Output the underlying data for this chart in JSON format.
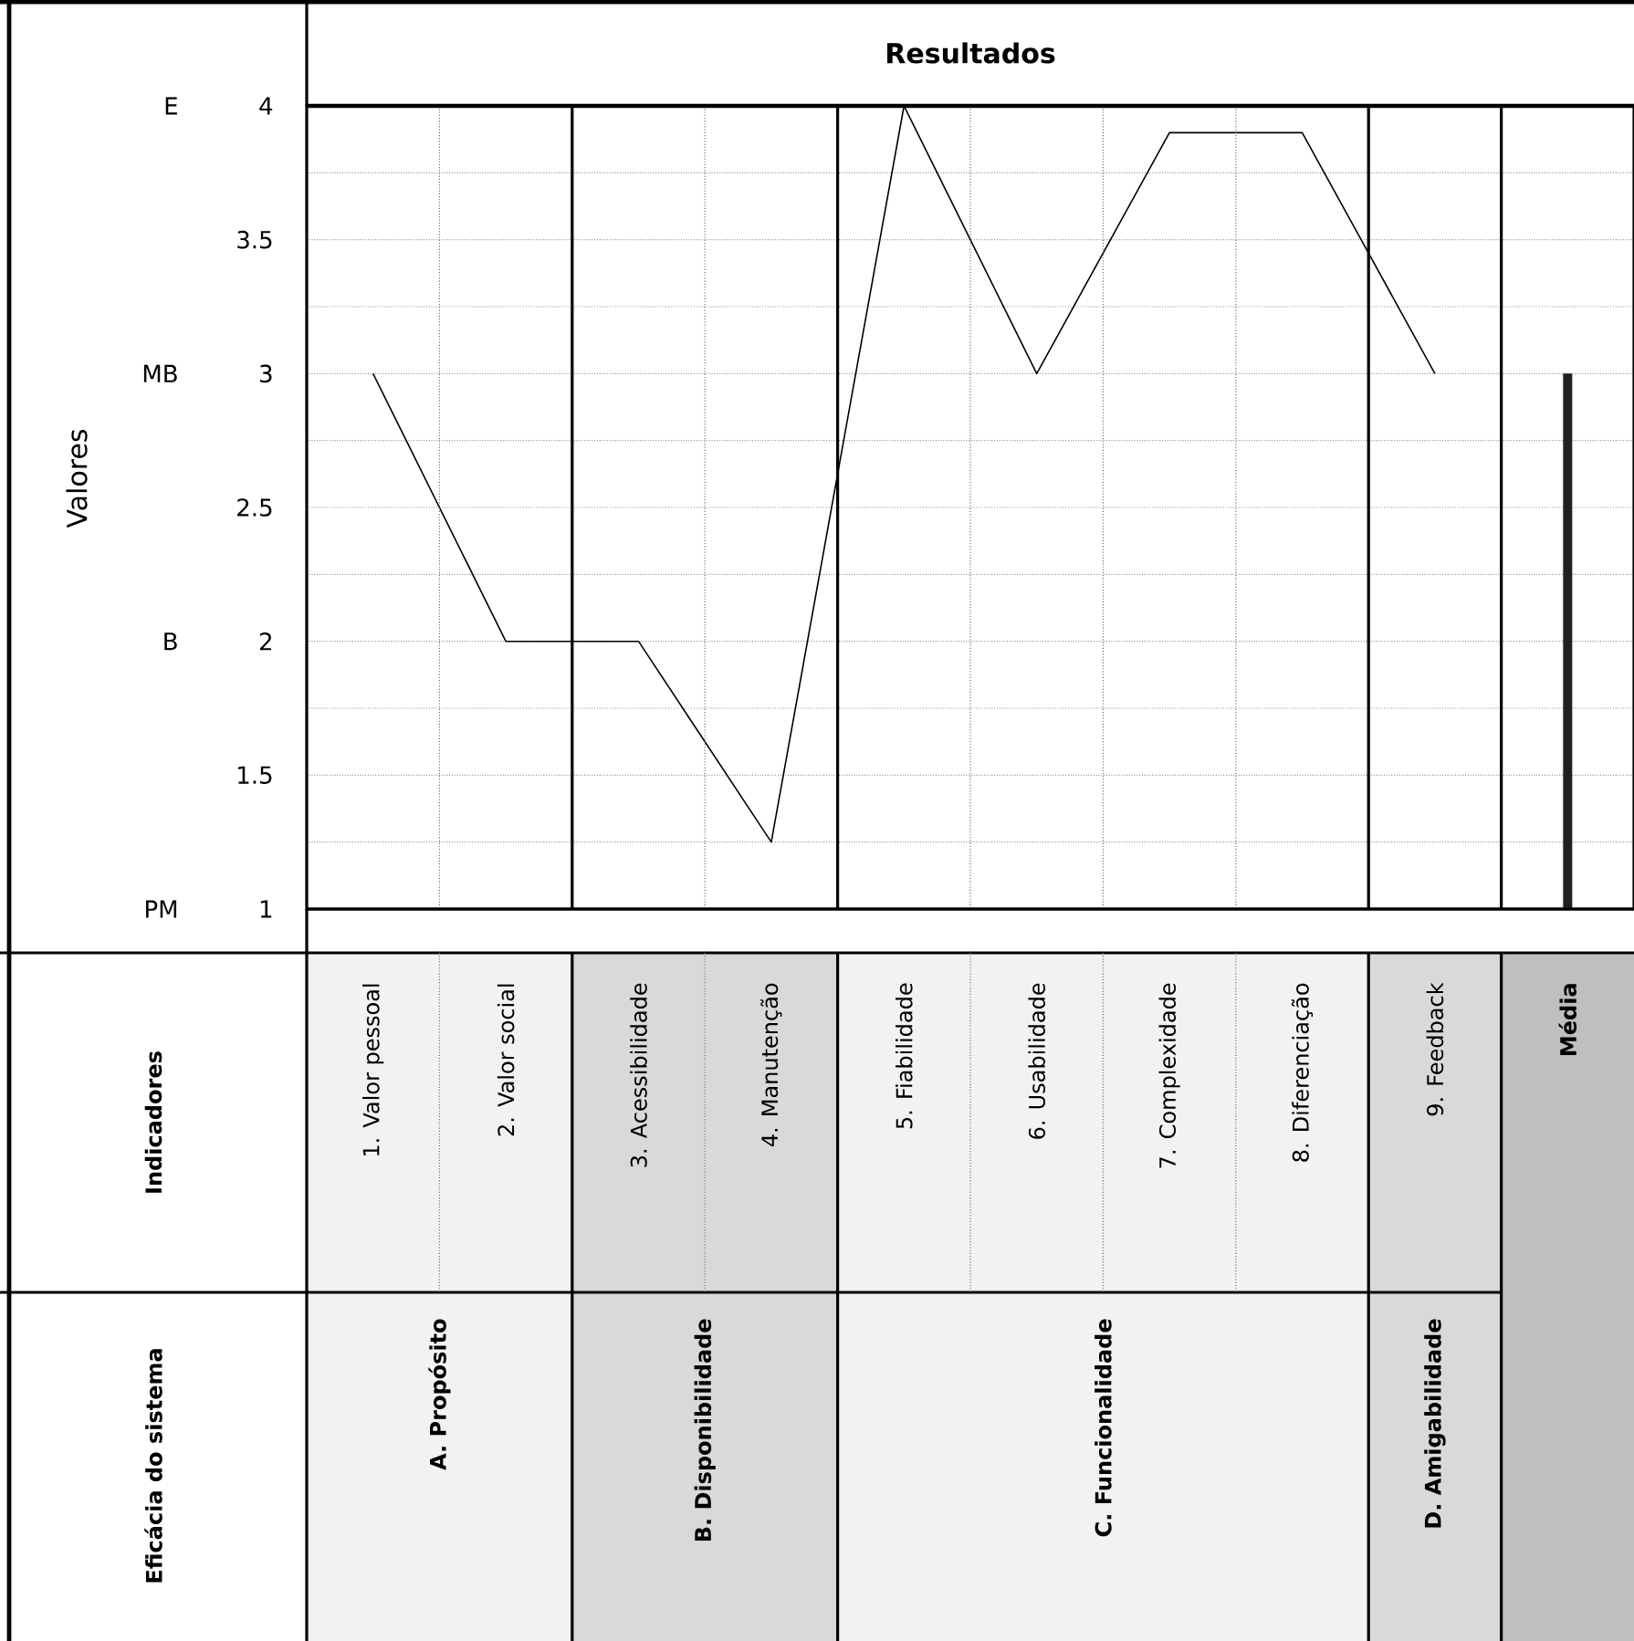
{
  "chart_data": {
    "type": "line",
    "title": "Resultados",
    "categories": [
      "1. Valor pessoal",
      "2. Valor social",
      "3. Acessibilidade",
      "4. Manutenção",
      "5. Fiabilidade",
      "6. Usabilidade",
      "7.  Complexidade",
      "8. Diferenciação",
      "9. Feedback",
      "Média"
    ],
    "series": [
      {
        "color": "#000000",
        "values": [
          3,
          2,
          2,
          1.25,
          4,
          3,
          3.9,
          3.9,
          3,
          null
        ]
      },
      {
        "type": "bar",
        "color": "#231f20",
        "values": [
          null,
          null,
          null,
          null,
          null,
          null,
          null,
          null,
          null,
          3
        ]
      }
    ],
    "ylim": [
      1,
      4
    ],
    "yticks": [
      1,
      {
        "value": 1.25,
        "label": null
      },
      1.5,
      {
        "value": 1.75,
        "label": null
      },
      2,
      {
        "value": 2.25,
        "label": null
      },
      2.5,
      {
        "value": 2.75,
        "label": null
      },
      3,
      {
        "value": 3.25,
        "label": null
      },
      3.5,
      {
        "value": 3.75,
        "label": null
      },
      4
    ],
    "grid": true,
    "annotations": [
      "Indicadores",
      "Eficácia do sistema",
      "A. Propósito",
      "B. Disponibilidade",
      "C. Funcionalidade",
      "D. Amigabilidade",
      "Valores",
      "E",
      "MB",
      "B",
      "PM"
    ]
  }
}
